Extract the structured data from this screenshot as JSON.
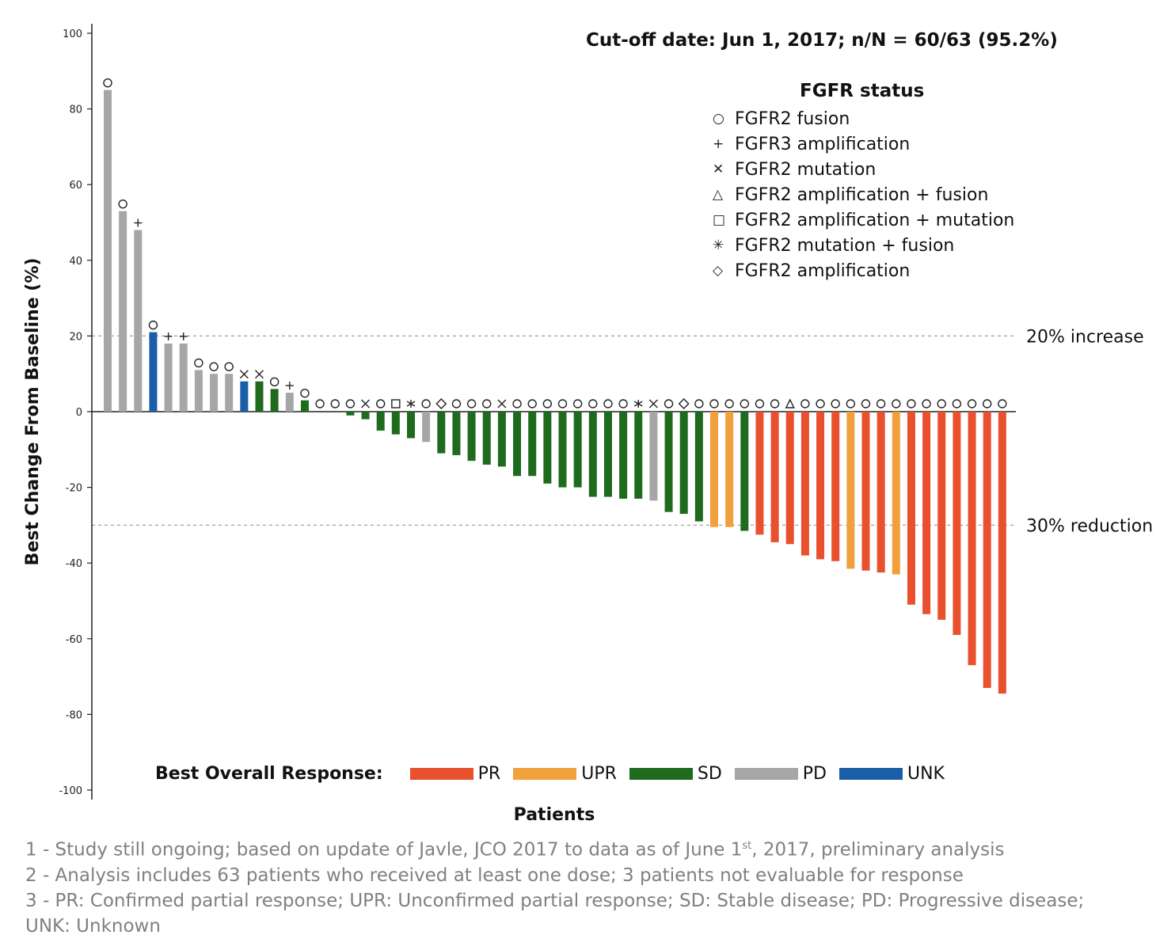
{
  "chart_data": {
    "type": "bar",
    "title": "Cut-off date: Jun 1, 2017; n/N = 60/63 (95.2%)",
    "xlabel": "Patients",
    "ylabel": "Best Change From Baseline (%)",
    "ylim": [
      -100,
      100
    ],
    "yticks": [
      100,
      80,
      60,
      40,
      20,
      0,
      -20,
      -40,
      -60,
      -80,
      -100
    ],
    "reference_lines": [
      {
        "value": 20,
        "label": "20% increase"
      },
      {
        "value": -30,
        "label": "30% reduction"
      }
    ],
    "legend_title": "FGFR status",
    "fgfr_legend": [
      {
        "marker": "circle",
        "symbol": "○",
        "label": "FGFR2 fusion"
      },
      {
        "marker": "plus",
        "symbol": "+",
        "label": "FGFR3 amplification"
      },
      {
        "marker": "x",
        "symbol": "✕",
        "label": "FGFR2 mutation"
      },
      {
        "marker": "triangle",
        "symbol": "△",
        "label": "FGFR2 amplification + fusion"
      },
      {
        "marker": "square",
        "symbol": "□",
        "label": "FGFR2 amplification + mutation"
      },
      {
        "marker": "asterisk",
        "symbol": "✳",
        "label": "FGFR2 mutation + fusion"
      },
      {
        "marker": "diamond",
        "symbol": "◇",
        "label": "FGFR2 amplification"
      }
    ],
    "response_legend_title": "Best Overall Response:",
    "response_categories": [
      {
        "code": "PR",
        "color": "#E8502E"
      },
      {
        "code": "UPR",
        "color": "#F0A03C"
      },
      {
        "code": "SD",
        "color": "#1E6B1E"
      },
      {
        "code": "PD",
        "color": "#A6A6A6"
      },
      {
        "code": "UNK",
        "color": "#1A5EA8"
      }
    ],
    "patients": [
      {
        "value": 85,
        "response": "PD",
        "marker": "circle"
      },
      {
        "value": 53,
        "response": "PD",
        "marker": "circle"
      },
      {
        "value": 48,
        "response": "PD",
        "marker": "plus"
      },
      {
        "value": 21,
        "response": "UNK",
        "marker": "circle"
      },
      {
        "value": 18,
        "response": "PD",
        "marker": "plus"
      },
      {
        "value": 18,
        "response": "PD",
        "marker": "plus"
      },
      {
        "value": 11,
        "response": "PD",
        "marker": "circle"
      },
      {
        "value": 10,
        "response": "PD",
        "marker": "circle"
      },
      {
        "value": 10,
        "response": "PD",
        "marker": "circle"
      },
      {
        "value": 8,
        "response": "UNK",
        "marker": "x"
      },
      {
        "value": 8,
        "response": "SD",
        "marker": "x"
      },
      {
        "value": 6,
        "response": "SD",
        "marker": "circle"
      },
      {
        "value": 5,
        "response": "PD",
        "marker": "plus"
      },
      {
        "value": 3,
        "response": "SD",
        "marker": "circle"
      },
      {
        "value": 0,
        "response": "SD",
        "marker": "circle"
      },
      {
        "value": 0,
        "response": "SD",
        "marker": "circle"
      },
      {
        "value": -1,
        "response": "SD",
        "marker": "circle"
      },
      {
        "value": -2,
        "response": "SD",
        "marker": "x"
      },
      {
        "value": -5,
        "response": "SD",
        "marker": "circle"
      },
      {
        "value": -6,
        "response": "SD",
        "marker": "square"
      },
      {
        "value": -7,
        "response": "SD",
        "marker": "asterisk"
      },
      {
        "value": -8,
        "response": "PD",
        "marker": "circle"
      },
      {
        "value": -11,
        "response": "SD",
        "marker": "diamond"
      },
      {
        "value": -11.5,
        "response": "SD",
        "marker": "circle"
      },
      {
        "value": -13,
        "response": "SD",
        "marker": "circle"
      },
      {
        "value": -14,
        "response": "SD",
        "marker": "circle"
      },
      {
        "value": -14.5,
        "response": "SD",
        "marker": "x"
      },
      {
        "value": -17,
        "response": "SD",
        "marker": "circle"
      },
      {
        "value": -17,
        "response": "SD",
        "marker": "circle"
      },
      {
        "value": -19,
        "response": "SD",
        "marker": "circle"
      },
      {
        "value": -20,
        "response": "SD",
        "marker": "circle"
      },
      {
        "value": -20,
        "response": "SD",
        "marker": "circle"
      },
      {
        "value": -22.5,
        "response": "SD",
        "marker": "circle"
      },
      {
        "value": -22.5,
        "response": "SD",
        "marker": "circle"
      },
      {
        "value": -23,
        "response": "SD",
        "marker": "circle"
      },
      {
        "value": -23,
        "response": "SD",
        "marker": "asterisk"
      },
      {
        "value": -23.5,
        "response": "PD",
        "marker": "x"
      },
      {
        "value": -26.5,
        "response": "SD",
        "marker": "circle"
      },
      {
        "value": -27,
        "response": "SD",
        "marker": "diamond"
      },
      {
        "value": -29,
        "response": "SD",
        "marker": "circle"
      },
      {
        "value": -30.5,
        "response": "UPR",
        "marker": "circle"
      },
      {
        "value": -30.5,
        "response": "UPR",
        "marker": "circle"
      },
      {
        "value": -31.5,
        "response": "SD",
        "marker": "circle"
      },
      {
        "value": -32.5,
        "response": "PR",
        "marker": "circle"
      },
      {
        "value": -34.5,
        "response": "PR",
        "marker": "circle"
      },
      {
        "value": -35,
        "response": "PR",
        "marker": "triangle"
      },
      {
        "value": -38,
        "response": "PR",
        "marker": "circle"
      },
      {
        "value": -39,
        "response": "PR",
        "marker": "circle"
      },
      {
        "value": -39.5,
        "response": "PR",
        "marker": "circle"
      },
      {
        "value": -41.5,
        "response": "UPR",
        "marker": "circle"
      },
      {
        "value": -42,
        "response": "PR",
        "marker": "circle"
      },
      {
        "value": -42.5,
        "response": "PR",
        "marker": "circle"
      },
      {
        "value": -43,
        "response": "UPR",
        "marker": "circle"
      },
      {
        "value": -51,
        "response": "PR",
        "marker": "circle"
      },
      {
        "value": -53.5,
        "response": "PR",
        "marker": "circle"
      },
      {
        "value": -55,
        "response": "PR",
        "marker": "circle"
      },
      {
        "value": -59,
        "response": "PR",
        "marker": "circle"
      },
      {
        "value": -67,
        "response": "PR",
        "marker": "circle"
      },
      {
        "value": -73,
        "response": "PR",
        "marker": "circle"
      },
      {
        "value": -74.5,
        "response": "PR",
        "marker": "circle"
      }
    ]
  },
  "footnotes": [
    {
      "num": "1 - ",
      "text_before": "Study still ongoing; based on update of Javle, JCO 2017 to data as of June 1",
      "sup": "st",
      "text_after": ", 2017, preliminary analysis"
    },
    {
      "num": "2 - ",
      "text_before": "Analysis includes 63 patients who received at least one dose; 3 patients not evaluable for response",
      "sup": "",
      "text_after": ""
    },
    {
      "num": "3 - ",
      "text_before": "PR: Confirmed partial response; UPR: Unconfirmed partial response; SD: Stable disease; PD: Progressive disease; UNK: Unknown",
      "sup": "",
      "text_after": ""
    }
  ]
}
